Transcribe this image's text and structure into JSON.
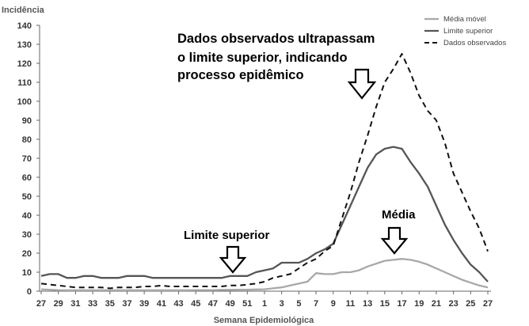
{
  "chart_data": {
    "type": "line",
    "ylabel": "Incidência",
    "xlabel": "Semana Epidemiológica",
    "ylim": [
      0,
      140
    ],
    "y_ticks": [
      0,
      10,
      20,
      30,
      40,
      50,
      60,
      70,
      80,
      90,
      100,
      110,
      120,
      130,
      140
    ],
    "x_tick_labels": [
      "27",
      "29",
      "31",
      "33",
      "35",
      "37",
      "39",
      "41",
      "43",
      "45",
      "47",
      "49",
      "51",
      "1",
      "3",
      "5",
      "7",
      "9",
      "11",
      "13",
      "15",
      "17",
      "19",
      "21",
      "23",
      "25",
      "27"
    ],
    "weeks": [
      "27",
      "28",
      "29",
      "30",
      "31",
      "32",
      "33",
      "34",
      "35",
      "36",
      "37",
      "38",
      "39",
      "40",
      "41",
      "42",
      "43",
      "44",
      "45",
      "46",
      "47",
      "48",
      "49",
      "50",
      "51",
      "52",
      "1",
      "2",
      "3",
      "4",
      "5",
      "6",
      "7",
      "8",
      "9",
      "10",
      "11",
      "12",
      "13",
      "14",
      "15",
      "16",
      "17",
      "18",
      "19",
      "20",
      "21",
      "22",
      "23",
      "24",
      "25",
      "26",
      "27"
    ],
    "series": [
      {
        "name": "Média móvel",
        "color": "#a8a8a8",
        "dash": "solid",
        "values": [
          1,
          0.8,
          0.6,
          0.5,
          0.5,
          0.5,
          0.5,
          0.5,
          0.5,
          0.5,
          0.5,
          0.5,
          0.5,
          0.5,
          0.5,
          0.5,
          0.5,
          0.5,
          0.6,
          0.6,
          0.6,
          0.7,
          0.7,
          0.8,
          0.8,
          0.9,
          1,
          1.5,
          2,
          3,
          4,
          5,
          9.5,
          9,
          9,
          10,
          10,
          11,
          13,
          14.5,
          16,
          16.5,
          17,
          16.5,
          15.5,
          14,
          12,
          10,
          8,
          6,
          4.5,
          3,
          2
        ]
      },
      {
        "name": "Limite superior",
        "color": "#555555",
        "dash": "solid",
        "values": [
          8,
          9,
          9,
          7,
          7,
          8,
          8,
          7,
          7,
          7,
          8,
          8,
          8,
          7,
          7,
          7,
          7,
          7,
          7,
          7,
          7,
          7,
          8,
          8,
          8,
          10,
          11,
          12,
          15,
          15,
          15,
          17,
          20,
          22,
          25,
          35,
          45,
          55,
          65,
          72,
          75,
          76,
          75,
          68,
          62,
          55,
          45,
          35,
          27,
          20,
          14,
          10,
          5
        ]
      },
      {
        "name": "Dados observados",
        "color": "#111111",
        "dash": "dashed",
        "values": [
          4,
          3.5,
          3,
          2.5,
          2,
          2,
          2,
          2,
          1.5,
          2,
          2,
          2,
          2.5,
          2.5,
          3,
          2.5,
          2.5,
          2.5,
          2.5,
          2.5,
          2.5,
          2.5,
          3,
          3,
          3.5,
          4,
          5,
          7,
          8,
          9,
          12,
          15,
          17,
          21,
          24,
          38,
          52,
          68,
          82,
          97,
          110,
          117,
          125,
          115,
          103,
          95,
          90,
          78,
          62,
          52,
          42,
          33,
          21
        ]
      }
    ],
    "legend_position": "top-right",
    "annotations": [
      "Dados observados ultrapassam",
      "o limite superior, indicando",
      "processo epidêmico",
      "Média",
      "Limite superior"
    ]
  }
}
